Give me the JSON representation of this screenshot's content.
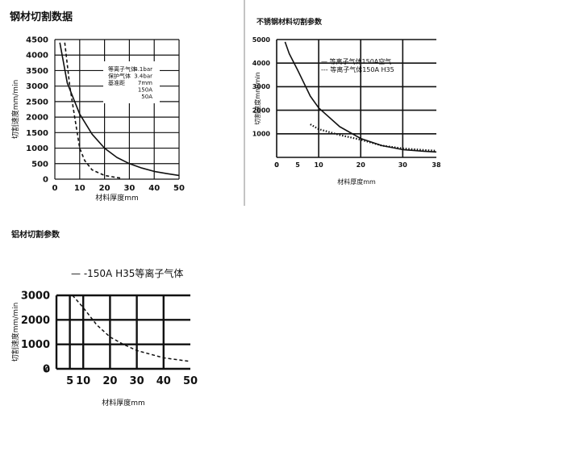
{
  "chart_data": [
    {
      "type": "line",
      "title": "钢材切割数据",
      "xlabel": "材料厚度mm",
      "ylabel": "切割速度mm/min",
      "xlim": [
        0,
        50
      ],
      "ylim": [
        0,
        4500
      ],
      "xticks": [
        0,
        10,
        20,
        30,
        40,
        50
      ],
      "yticks": [
        0,
        500,
        1000,
        1500,
        2000,
        2500,
        3000,
        3500,
        4000,
        4500
      ],
      "ytick_labels": [
        "0",
        "500",
        "1000",
        "1500",
        "2000",
        "2500",
        "3000",
        "3500",
        "4000",
        "4500"
      ],
      "grid": true,
      "annotation": {
        "labels": [
          "等离子气体",
          "保护气体",
          "基准距",
          "",
          ""
        ],
        "values": [
          "4.1bar",
          "3.4bar",
          "7mm",
          "150A",
          "50A"
        ]
      },
      "series": [
        {
          "style": "solid",
          "x": [
            2,
            5,
            8,
            10,
            15,
            20,
            25,
            30,
            35,
            40,
            45,
            50
          ],
          "y": [
            4400,
            3100,
            2500,
            2100,
            1450,
            1000,
            700,
            500,
            360,
            250,
            180,
            120
          ]
        },
        {
          "style": "dashed",
          "x": [
            4,
            6,
            8,
            9,
            10,
            12,
            15,
            20,
            25,
            27
          ],
          "y": [
            4400,
            3000,
            2000,
            1500,
            1000,
            600,
            300,
            120,
            50,
            30
          ]
        }
      ]
    },
    {
      "type": "line",
      "title": "不锈钢材料切割参数",
      "xlabel": "材料厚度mm",
      "ylabel": "切割速度mm/min",
      "xlim": [
        0,
        38
      ],
      "ylim": [
        0,
        5000
      ],
      "xticks": [
        0,
        5,
        10,
        20,
        30,
        38
      ],
      "yticks": [
        0,
        1000,
        2000,
        3000,
        4000,
        5000
      ],
      "ytick_labels": [
        "",
        "1000",
        "2000",
        "3000",
        "4000",
        "5000"
      ],
      "grid": true,
      "legend_position": "top-right",
      "series": [
        {
          "name": "等离子气体150A空气",
          "style": "solid",
          "x": [
            2,
            3,
            5,
            8,
            10,
            15,
            20,
            25,
            30,
            35,
            38
          ],
          "y": [
            4900,
            4400,
            3700,
            2600,
            2100,
            1300,
            800,
            500,
            330,
            260,
            230
          ]
        },
        {
          "name": "等离子气体150A H35",
          "style": "dotted",
          "x": [
            8,
            10,
            15,
            20,
            25,
            30,
            35,
            38
          ],
          "y": [
            1400,
            1200,
            950,
            750,
            500,
            380,
            310,
            280
          ]
        }
      ],
      "legend_prefixes": [
        "—",
        "---"
      ]
    },
    {
      "type": "line",
      "title": "铝材切割参数",
      "xlabel": "材料厚度mm",
      "ylabel": "切割速度mm/min",
      "xlim": [
        0,
        50
      ],
      "ylim": [
        0,
        3000
      ],
      "xticks": [
        0,
        5,
        10,
        20,
        30,
        40,
        50
      ],
      "xtick_labels": [
        "",
        "5",
        "10",
        "20",
        "30",
        "40",
        "50"
      ],
      "yticks": [
        0,
        1000,
        2000,
        3000
      ],
      "ytick_labels": [
        "0",
        "1000",
        "2000",
        "3000"
      ],
      "grid": true,
      "legend_position": "top-left",
      "series": [
        {
          "name": "150A H35等离子气体",
          "style": "dashed",
          "x": [
            6,
            10,
            15,
            20,
            25,
            30,
            40,
            50
          ],
          "y": [
            3000,
            2500,
            1800,
            1300,
            1000,
            750,
            450,
            300
          ]
        }
      ],
      "legend_prefixes": [
        "— -"
      ]
    }
  ]
}
